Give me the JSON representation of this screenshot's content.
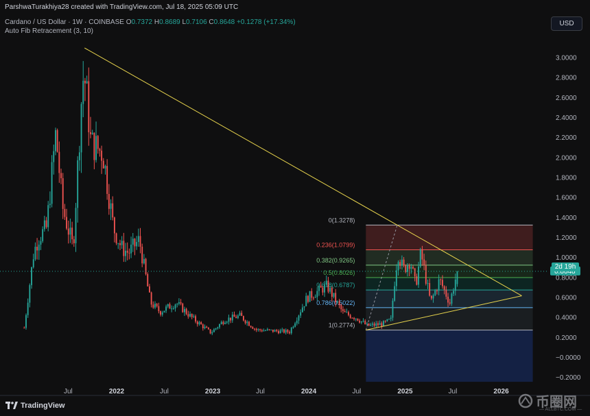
{
  "header": {
    "attribution": "ParshwaTurakhiya28 created with TradingView.com, Jul 18, 2025 05:09 UTC",
    "symbol": "Cardano / US Dollar · 1W · COINBASE",
    "open_label": "O",
    "open_value": "0.7372",
    "high_label": "H",
    "high_value": "0.8689",
    "low_label": "L",
    "low_value": "0.7106",
    "close_label": "C",
    "close_value": "0.8648",
    "change": "+0.1278 (+17.34%)",
    "indicator": "Auto Fib Retracement (3, 10)"
  },
  "currency_button": "USD",
  "countdown": "2d 19h",
  "brand": "TradingView",
  "watermark": {
    "main": "币圈网",
    "sub": "— ALLBTC.COM —"
  },
  "colors": {
    "background": "#0f0f10",
    "up": "#26a69a",
    "down": "#ef5350",
    "trendline": "#e8d44d",
    "axis_text": "#b2b5be"
  },
  "chart_data": {
    "type": "candlestick",
    "title": "Cardano / US Dollar · 1W · COINBASE",
    "y_ticks": [
      "3.0000",
      "2.8000",
      "2.6000",
      "2.4000",
      "2.2000",
      "2.0000",
      "1.8000",
      "1.6000",
      "1.4000",
      "1.2000",
      "1.0000",
      "0.8000",
      "0.6000",
      "0.4000",
      "0.2000",
      "−0.0000",
      "−0.2000"
    ],
    "y_tick_values": [
      3.0,
      2.8,
      2.6,
      2.4,
      2.2,
      2.0,
      1.8,
      1.6,
      1.4,
      1.2,
      1.0,
      0.8,
      0.6,
      0.4,
      0.2,
      0.0,
      -0.2
    ],
    "ylim": [
      -0.26,
      3.25
    ],
    "x_ticks": [
      {
        "label": "Jul",
        "date": "2021-07-01"
      },
      {
        "label": "2022",
        "date": "2022-01-01"
      },
      {
        "label": "Jul",
        "date": "2022-07-01"
      },
      {
        "label": "2023",
        "date": "2023-01-01"
      },
      {
        "label": "Jul",
        "date": "2023-07-01"
      },
      {
        "label": "2024",
        "date": "2024-01-01"
      },
      {
        "label": "Jul",
        "date": "2024-07-01"
      },
      {
        "label": "2025",
        "date": "2025-01-01"
      },
      {
        "label": "Jul",
        "date": "2025-07-01"
      },
      {
        "label": "2026",
        "date": "2026-01-01"
      }
    ],
    "xlim": [
      "2020-10-15",
      "2026-07-01"
    ],
    "price_path": [
      [
        "2021-01-15",
        0.3
      ],
      [
        "2021-02-20",
        1.05
      ],
      [
        "2021-03-10",
        1.2
      ],
      [
        "2021-04-10",
        1.3
      ],
      [
        "2021-05-15",
        2.25
      ],
      [
        "2021-06-10",
        1.5
      ],
      [
        "2021-07-20",
        1.1
      ],
      [
        "2021-08-25",
        2.8
      ],
      [
        "2021-09-05",
        2.75
      ],
      [
        "2021-09-25",
        2.15
      ],
      [
        "2021-11-10",
        2.05
      ],
      [
        "2021-12-20",
        1.3
      ],
      [
        "2022-01-20",
        1.1
      ],
      [
        "2022-02-15",
        1.05
      ],
      [
        "2022-03-28",
        1.18
      ],
      [
        "2022-05-10",
        0.55
      ],
      [
        "2022-06-15",
        0.46
      ],
      [
        "2022-08-15",
        0.55
      ],
      [
        "2022-10-15",
        0.4
      ],
      [
        "2022-12-25",
        0.25
      ],
      [
        "2023-02-15",
        0.38
      ],
      [
        "2023-04-15",
        0.42
      ],
      [
        "2023-06-15",
        0.28
      ],
      [
        "2023-08-15",
        0.27
      ],
      [
        "2023-10-20",
        0.26
      ],
      [
        "2023-12-25",
        0.6
      ],
      [
        "2024-03-10",
        0.72
      ],
      [
        "2024-05-10",
        0.45
      ],
      [
        "2024-07-01",
        0.4
      ],
      [
        "2024-08-10",
        0.32
      ],
      [
        "2024-10-10",
        0.34
      ],
      [
        "2024-11-08",
        0.38
      ],
      [
        "2024-11-25",
        0.85
      ],
      [
        "2024-12-05",
        1.05
      ],
      [
        "2024-12-25",
        0.88
      ],
      [
        "2025-01-20",
        0.98
      ],
      [
        "2025-02-10",
        0.72
      ],
      [
        "2025-03-02",
        1.05
      ],
      [
        "2025-04-08",
        0.55
      ],
      [
        "2025-05-12",
        0.78
      ],
      [
        "2025-06-20",
        0.55
      ],
      [
        "2025-07-18",
        0.8648
      ]
    ],
    "fib_levels": [
      {
        "label": "0(1.3278)",
        "ratio": 0,
        "price": 1.3278,
        "color": "#b2b5be",
        "fill": "rgba(239,83,80,0.22)"
      },
      {
        "label": "0.236(1.0799)",
        "ratio": 0.236,
        "price": 1.0799,
        "color": "#ef5350",
        "fill": "rgba(129,199,132,0.16)"
      },
      {
        "label": "0.382(0.9265)",
        "ratio": 0.382,
        "price": 0.9265,
        "color": "#81c784",
        "fill": "rgba(76,175,80,0.16)"
      },
      {
        "label": "0.5(0.8026)",
        "ratio": 0.5,
        "price": 0.8026,
        "color": "#4caf50",
        "fill": "rgba(8,153,129,0.16)"
      },
      {
        "label": "0.618(0.6787)",
        "ratio": 0.618,
        "price": 0.6787,
        "color": "#26a69a",
        "fill": "rgba(100,181,246,0.14)"
      },
      {
        "label": "0.786(0.5022)",
        "ratio": 0.786,
        "price": 0.5022,
        "color": "#64b5f6",
        "fill": "rgba(96,125,139,0.14)"
      },
      {
        "label": "1(0.2774)",
        "ratio": 1,
        "price": 0.2774,
        "color": "#b2b5be",
        "fill": "rgba(41,98,255,0.22)"
      }
    ],
    "fib_range": {
      "start": "2024-08-05",
      "end": "2026-05-01",
      "lowest_fill_price": -0.24
    },
    "fib_anchor_line": [
      [
        "2024-08-05",
        0.2774
      ],
      [
        "2024-12-02",
        1.3278
      ]
    ],
    "trendlines": [
      {
        "name": "upper",
        "points": [
          [
            "2021-09-01",
            3.1
          ],
          [
            "2024-12-02",
            1.3278
          ],
          [
            "2026-03-20",
            0.62
          ]
        ]
      },
      {
        "name": "lower",
        "points": [
          [
            "2024-08-05",
            0.2774
          ],
          [
            "2026-03-20",
            0.62
          ]
        ]
      }
    ],
    "last_price": 0.8648,
    "grid": false
  }
}
